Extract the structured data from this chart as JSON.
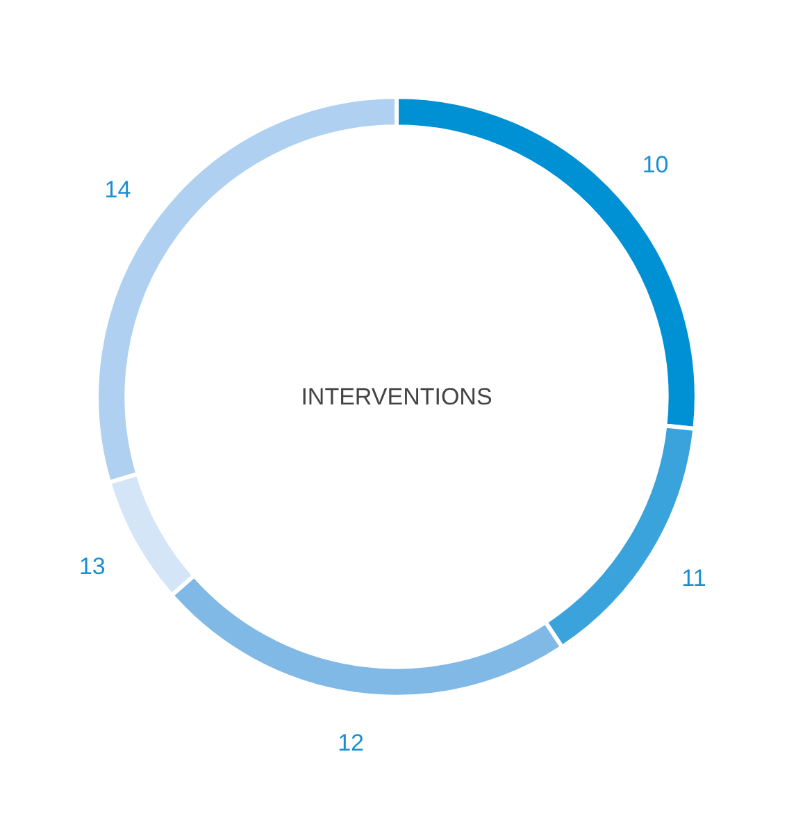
{
  "chart_data": {
    "type": "donut",
    "title": "INTERVENTIONS",
    "categories": [
      "10",
      "11",
      "12",
      "13",
      "14"
    ],
    "values": [
      26.7,
      14.0,
      22.8,
      6.9,
      29.6
    ],
    "colors": [
      "#0090d4",
      "#3aa3dc",
      "#80b8e6",
      "#d4e5f7",
      "#afd0f0"
    ]
  }
}
